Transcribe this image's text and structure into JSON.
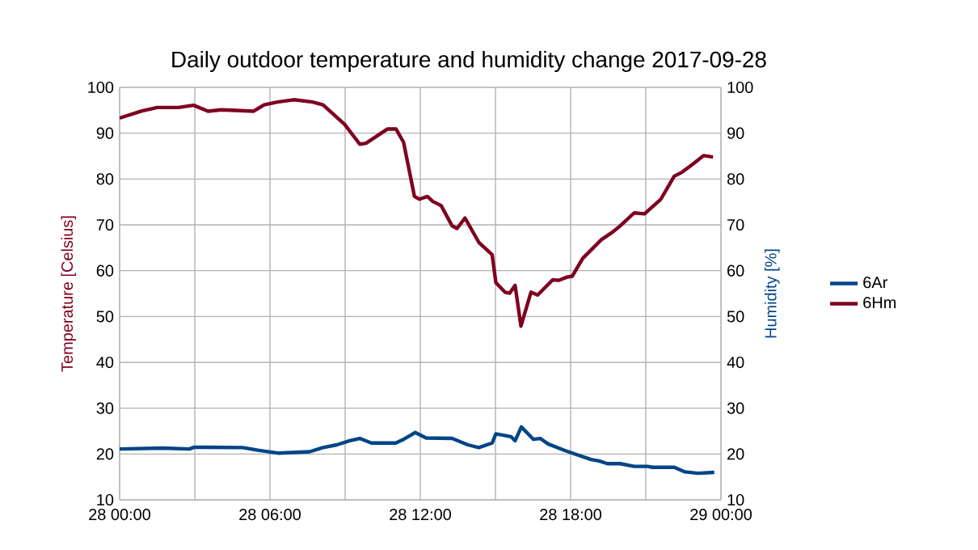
{
  "chart_data": {
    "type": "line",
    "title": "Daily outdoor temperature and humidity change 2017-09-28",
    "ylabel": "Temperature [Celsius]",
    "y2label": "Humidity [%]",
    "series": [
      {
        "name": "6Ar",
        "color": "#004586",
        "x": [
          "2017-09-28T00:00",
          "2017-09-28T01:43",
          "2017-09-28T02:47",
          "2017-09-28T02:59",
          "2017-09-28T04:55",
          "2017-09-28T05:34",
          "2017-09-28T06:19",
          "2017-09-28T07:35",
          "2017-09-28T08:07",
          "2017-09-28T08:40",
          "2017-09-28T09:11",
          "2017-09-28T09:35",
          "2017-09-28T10:03",
          "2017-09-28T11:01",
          "2017-09-28T11:20",
          "2017-09-28T11:48",
          "2017-09-28T12:14",
          "2017-09-28T13:16",
          "2017-09-28T13:54",
          "2017-09-28T14:20",
          "2017-09-28T14:52",
          "2017-09-28T15:01",
          "2017-09-28T15:37",
          "2017-09-28T15:47",
          "2017-09-28T16:02",
          "2017-09-28T16:31",
          "2017-09-28T16:47",
          "2017-09-28T17:06",
          "2017-09-28T17:45",
          "2017-09-28T18:04",
          "2017-09-28T18:49",
          "2017-09-28T19:08",
          "2017-09-28T19:28",
          "2017-09-28T19:59",
          "2017-09-28T20:32",
          "2017-09-28T21:04",
          "2017-09-28T21:16",
          "2017-09-28T22:08",
          "2017-09-28T22:34",
          "2017-09-28T23:05",
          "2017-09-28T23:44"
        ],
        "values": [
          21.1,
          21.3,
          21.1,
          21.5,
          21.4,
          20.8,
          20.2,
          20.5,
          21.4,
          22.0,
          22.9,
          23.4,
          22.4,
          22.4,
          23.2,
          24.7,
          23.5,
          23.4,
          22.0,
          21.4,
          22.4,
          24.4,
          23.8,
          22.9,
          25.9,
          23.2,
          23.4,
          22.2,
          20.8,
          20.2,
          18.8,
          18.5,
          17.9,
          17.9,
          17.3,
          17.3,
          17.1,
          17.1,
          16.1,
          15.8,
          16.0
        ]
      },
      {
        "name": "6Hm",
        "color": "#7e0021",
        "axis": "y2",
        "x": [
          "2017-09-28T00:00",
          "2017-09-28T00:52",
          "2017-09-28T01:30",
          "2017-09-28T02:21",
          "2017-09-28T02:57",
          "2017-09-28T03:32",
          "2017-09-28T04:04",
          "2017-09-28T05:21",
          "2017-09-28T05:46",
          "2017-09-28T06:18",
          "2017-09-28T06:57",
          "2017-09-28T07:42",
          "2017-09-28T08:07",
          "2017-09-28T08:59",
          "2017-09-28T09:35",
          "2017-09-28T09:50",
          "2017-09-28T10:41",
          "2017-09-28T11:02",
          "2017-09-28T11:20",
          "2017-09-28T11:46",
          "2017-09-28T11:58",
          "2017-09-28T12:17",
          "2017-09-28T12:30",
          "2017-09-28T12:50",
          "2017-09-28T13:16",
          "2017-09-28T13:28",
          "2017-09-28T13:47",
          "2017-09-28T14:20",
          "2017-09-28T14:52",
          "2017-09-28T15:01",
          "2017-09-28T15:23",
          "2017-09-28T15:34",
          "2017-09-28T15:47",
          "2017-09-28T16:01",
          "2017-09-28T16:25",
          "2017-09-28T16:41",
          "2017-09-28T17:17",
          "2017-09-28T17:32",
          "2017-09-28T17:51",
          "2017-09-28T18:04",
          "2017-09-28T18:29",
          "2017-09-28T19:14",
          "2017-09-28T19:40",
          "2017-09-28T19:59",
          "2017-09-28T20:32",
          "2017-09-28T20:57",
          "2017-09-28T21:36",
          "2017-09-28T22:08",
          "2017-09-28T22:27",
          "2017-09-28T22:53",
          "2017-09-28T23:18",
          "2017-09-28T23:41"
        ],
        "values": [
          93.3,
          94.8,
          95.6,
          95.6,
          96.1,
          94.8,
          95.1,
          94.8,
          96.2,
          96.8,
          97.3,
          96.8,
          96.2,
          91.9,
          87.6,
          87.8,
          90.9,
          90.9,
          88.0,
          76.2,
          75.6,
          76.2,
          75.1,
          74.2,
          69.8,
          69.2,
          71.5,
          66.2,
          63.5,
          57.4,
          55.3,
          55.1,
          56.8,
          47.9,
          55.3,
          54.7,
          58.0,
          57.9,
          58.6,
          58.8,
          62.7,
          66.8,
          68.4,
          69.8,
          72.6,
          72.4,
          75.6,
          80.6,
          81.5,
          83.3,
          85.1,
          84.8
        ]
      }
    ],
    "xlim": [
      "2017-09-28T00:00",
      "2017-09-29T00:00"
    ],
    "xticks": [
      {
        "value": "2017-09-28T00:00",
        "label": "28 00:00"
      },
      {
        "value": "2017-09-28T03:00",
        "label": null
      },
      {
        "value": "2017-09-28T06:00",
        "label": "28 06:00"
      },
      {
        "value": "2017-09-28T09:00",
        "label": null
      },
      {
        "value": "2017-09-28T12:00",
        "label": "28 12:00"
      },
      {
        "value": "2017-09-28T15:00",
        "label": null
      },
      {
        "value": "2017-09-28T18:00",
        "label": "28 18:00"
      },
      {
        "value": "2017-09-28T21:00",
        "label": null
      },
      {
        "value": "2017-09-29T00:00",
        "label": "29 00:00"
      }
    ],
    "ylim": [
      10,
      100
    ],
    "yticks": [
      10,
      20,
      30,
      40,
      50,
      60,
      70,
      80,
      90,
      100
    ],
    "y2lim": [
      10,
      100
    ],
    "y2ticks": [
      10,
      20,
      30,
      40,
      50,
      60,
      70,
      80,
      90,
      100
    ],
    "grid": true,
    "legend": "right",
    "marker": "none",
    "line_style": "solid"
  }
}
